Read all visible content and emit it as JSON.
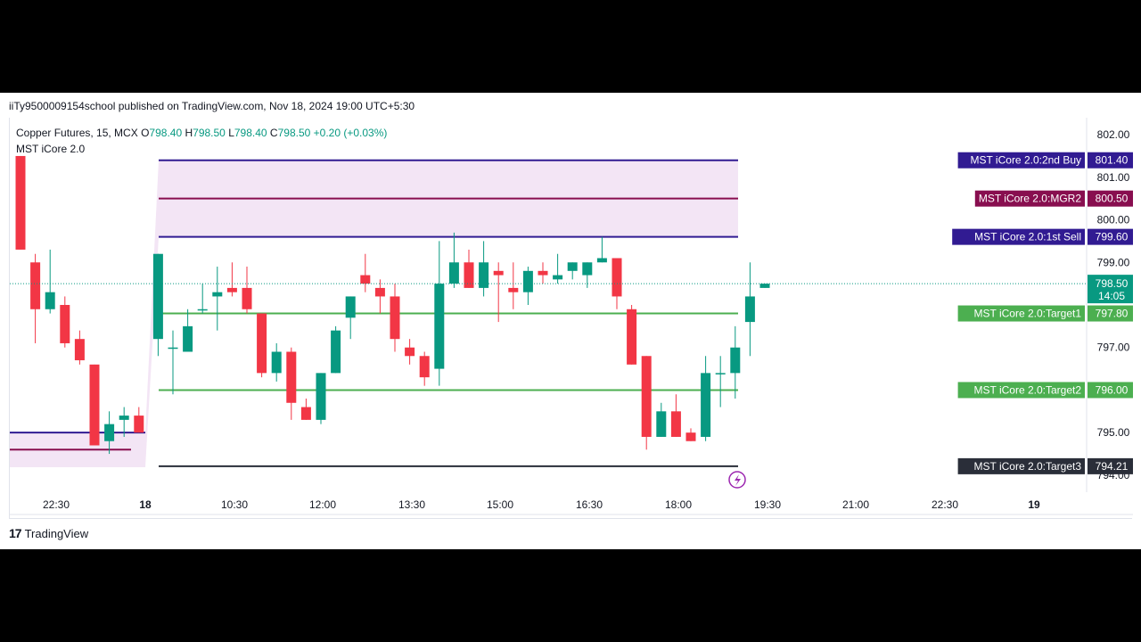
{
  "header": {
    "publisher_line": "iiTy9500009154school published on TradingView.com, Nov 18, 2024 19:00 UTC+5:30"
  },
  "legend": {
    "symbol": "Copper Futures, 15, MCX",
    "open_label": "O",
    "open": "798.40",
    "high_label": "H",
    "high": "798.50",
    "low_label": "L",
    "low": "798.40",
    "close_label": "C",
    "close": "798.50",
    "change": "+0.20 (+0.03%)",
    "indicator": "MST iCore 2.0"
  },
  "footer": {
    "brand": "TradingView",
    "logo": "17"
  },
  "colors": {
    "up": "#089981",
    "down": "#f23645",
    "zone_fill": "#f3e5f5",
    "green_line": "#4caf50",
    "navy_line": "#311b92",
    "maroon_line": "#880e4f",
    "dark_line": "#2a2e39"
  },
  "chart_data": {
    "type": "candlestick",
    "ylim": [
      793.6,
      802.4
    ],
    "y_ticks": [
      "802.00",
      "801.00",
      "800.00",
      "799.00",
      "797.00",
      "795.00",
      "794.00"
    ],
    "y_tick_values": [
      802,
      801,
      800,
      799,
      797,
      795,
      794
    ],
    "x_ticks": [
      "22:30",
      "18",
      "10:30",
      "12:00",
      "13:30",
      "15:00",
      "16:30",
      "18:00",
      "19:30",
      "21:00",
      "22:30",
      "19"
    ],
    "current_price": {
      "value": 798.5,
      "label": "798.50",
      "countdown": "14:05"
    },
    "levels": [
      {
        "label": "MST iCore 2.0:2nd Buy",
        "value": 801.4,
        "price": "801.40",
        "color": "#311b92"
      },
      {
        "label": "MST iCore 2.0:MGR2",
        "value": 800.5,
        "price": "800.50",
        "color": "#880e4f"
      },
      {
        "label": "MST iCore 2.0:1st Sell",
        "value": 799.6,
        "price": "799.60",
        "color": "#311b92"
      },
      {
        "label": "MST iCore 2.0:Target1",
        "value": 797.8,
        "price": "797.80",
        "color": "#4caf50"
      },
      {
        "label": "MST iCore 2.0:Target2",
        "value": 796.0,
        "price": "796.00",
        "color": "#4caf50"
      },
      {
        "label": "MST iCore 2.0:Target3",
        "value": 794.21,
        "price": "794.21",
        "color": "#2a2e39"
      }
    ],
    "candles": [
      {
        "o": 801.5,
        "h": 801.5,
        "l": 799.3,
        "c": 799.3
      },
      {
        "o": 799.0,
        "h": 799.2,
        "l": 797.1,
        "c": 797.9
      },
      {
        "o": 797.9,
        "h": 799.3,
        "l": 797.8,
        "c": 798.3
      },
      {
        "o": 798.0,
        "h": 798.2,
        "l": 797.0,
        "c": 797.1
      },
      {
        "o": 797.2,
        "h": 797.4,
        "l": 796.6,
        "c": 796.7
      },
      {
        "o": 796.6,
        "h": 796.6,
        "l": 794.7,
        "c": 794.7
      },
      {
        "o": 794.8,
        "h": 795.5,
        "l": 794.5,
        "c": 795.2
      },
      {
        "o": 795.3,
        "h": 795.6,
        "l": 794.9,
        "c": 795.4
      },
      {
        "o": 795.4,
        "h": 795.6,
        "l": 795.0,
        "c": 795.0
      },
      {
        "o": 797.2,
        "h": 799.2,
        "l": 796.8,
        "c": 799.2
      },
      {
        "o": 797.0,
        "h": 797.4,
        "l": 795.9,
        "c": 797.0
      },
      {
        "o": 796.9,
        "h": 797.9,
        "l": 796.9,
        "c": 797.5
      },
      {
        "o": 797.9,
        "h": 798.5,
        "l": 797.8,
        "c": 797.9
      },
      {
        "o": 798.2,
        "h": 798.9,
        "l": 797.4,
        "c": 798.3
      },
      {
        "o": 798.4,
        "h": 799.0,
        "l": 798.2,
        "c": 798.3
      },
      {
        "o": 798.4,
        "h": 798.9,
        "l": 797.8,
        "c": 797.9
      },
      {
        "o": 797.8,
        "h": 797.8,
        "l": 796.3,
        "c": 796.4
      },
      {
        "o": 796.4,
        "h": 797.1,
        "l": 796.2,
        "c": 796.9
      },
      {
        "o": 796.9,
        "h": 797.0,
        "l": 795.3,
        "c": 795.7
      },
      {
        "o": 795.6,
        "h": 795.8,
        "l": 795.3,
        "c": 795.3
      },
      {
        "o": 795.3,
        "h": 796.4,
        "l": 795.2,
        "c": 796.4
      },
      {
        "o": 796.4,
        "h": 797.5,
        "l": 796.4,
        "c": 797.4
      },
      {
        "o": 797.7,
        "h": 798.2,
        "l": 797.2,
        "c": 798.2
      },
      {
        "o": 798.7,
        "h": 799.2,
        "l": 798.3,
        "c": 798.5
      },
      {
        "o": 798.4,
        "h": 798.6,
        "l": 797.8,
        "c": 798.2
      },
      {
        "o": 798.2,
        "h": 798.5,
        "l": 796.9,
        "c": 797.2
      },
      {
        "o": 797.0,
        "h": 797.2,
        "l": 796.6,
        "c": 796.8
      },
      {
        "o": 796.8,
        "h": 796.9,
        "l": 796.1,
        "c": 796.3
      },
      {
        "o": 796.5,
        "h": 799.5,
        "l": 796.1,
        "c": 798.5
      },
      {
        "o": 798.5,
        "h": 799.7,
        "l": 798.4,
        "c": 799.0
      },
      {
        "o": 799.0,
        "h": 799.3,
        "l": 798.4,
        "c": 798.4
      },
      {
        "o": 798.4,
        "h": 799.5,
        "l": 798.2,
        "c": 799.0
      },
      {
        "o": 798.8,
        "h": 799.0,
        "l": 797.6,
        "c": 798.7
      },
      {
        "o": 798.4,
        "h": 799.0,
        "l": 797.9,
        "c": 798.3
      },
      {
        "o": 798.3,
        "h": 798.9,
        "l": 798.0,
        "c": 798.8
      },
      {
        "o": 798.8,
        "h": 799.0,
        "l": 798.5,
        "c": 798.7
      },
      {
        "o": 798.6,
        "h": 799.2,
        "l": 798.5,
        "c": 798.7
      },
      {
        "o": 798.8,
        "h": 799.0,
        "l": 798.6,
        "c": 799.0
      },
      {
        "o": 798.7,
        "h": 799.0,
        "l": 798.4,
        "c": 799.0
      },
      {
        "o": 799.0,
        "h": 799.6,
        "l": 799.0,
        "c": 799.1
      },
      {
        "o": 799.1,
        "h": 799.1,
        "l": 797.9,
        "c": 798.2
      },
      {
        "o": 797.9,
        "h": 798.0,
        "l": 796.6,
        "c": 796.6
      },
      {
        "o": 796.8,
        "h": 796.8,
        "l": 794.6,
        "c": 794.9
      },
      {
        "o": 794.9,
        "h": 795.7,
        "l": 794.9,
        "c": 795.5
      },
      {
        "o": 795.5,
        "h": 795.9,
        "l": 794.9,
        "c": 794.9
      },
      {
        "o": 795.0,
        "h": 795.1,
        "l": 794.8,
        "c": 794.8
      },
      {
        "o": 794.9,
        "h": 796.8,
        "l": 794.8,
        "c": 796.4
      },
      {
        "o": 796.4,
        "h": 796.8,
        "l": 795.6,
        "c": 796.4
      },
      {
        "o": 796.4,
        "h": 797.5,
        "l": 795.8,
        "c": 797.0
      },
      {
        "o": 797.6,
        "h": 799.0,
        "l": 796.8,
        "c": 798.2
      },
      {
        "o": 798.4,
        "h": 798.5,
        "l": 798.4,
        "c": 798.5
      }
    ]
  }
}
